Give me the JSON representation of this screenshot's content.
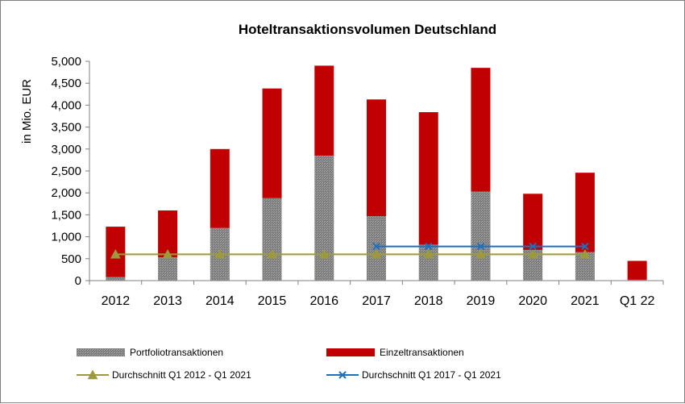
{
  "chart_data": {
    "type": "bar",
    "title": "Hoteltransaktionsvolumen Deutschland",
    "ylabel": "in Mio. EUR",
    "xlabel": "",
    "ylim": [
      0,
      5000
    ],
    "yticks": [
      "0",
      "500",
      "1,000",
      "1,500",
      "2,000",
      "2,500",
      "3,000",
      "3,500",
      "4,000",
      "4,500",
      "5,000"
    ],
    "categories": [
      "2012",
      "2013",
      "2014",
      "2015",
      "2016",
      "2017",
      "2018",
      "2019",
      "2020",
      "2021",
      "Q1 22"
    ],
    "stacked": true,
    "grid": false,
    "legend_position": "bottom",
    "series": [
      {
        "name": "Portfoliotransaktionen",
        "kind": "bar",
        "color": "#8c8c8c",
        "values": [
          80,
          530,
          1200,
          1880,
          2850,
          1470,
          820,
          2030,
          700,
          650,
          20
        ]
      },
      {
        "name": "Einzeltransaktionen",
        "kind": "bar",
        "color": "#c00000",
        "values": [
          1150,
          1070,
          1800,
          2500,
          2050,
          2660,
          3020,
          2820,
          1280,
          1810,
          430
        ]
      },
      {
        "name": "Durchschnitt Q1 2012 - Q1 2021",
        "kind": "line",
        "color": "#9c9a3c",
        "marker": "triangle",
        "values": [
          600,
          600,
          600,
          600,
          600,
          600,
          600,
          600,
          600,
          600,
          null
        ]
      },
      {
        "name": "Durchschnitt Q1 2017 - Q1 2021",
        "kind": "line",
        "color": "#1f6fbf",
        "marker": "x",
        "values": [
          null,
          null,
          null,
          null,
          null,
          780,
          780,
          780,
          780,
          780,
          null
        ]
      }
    ]
  }
}
